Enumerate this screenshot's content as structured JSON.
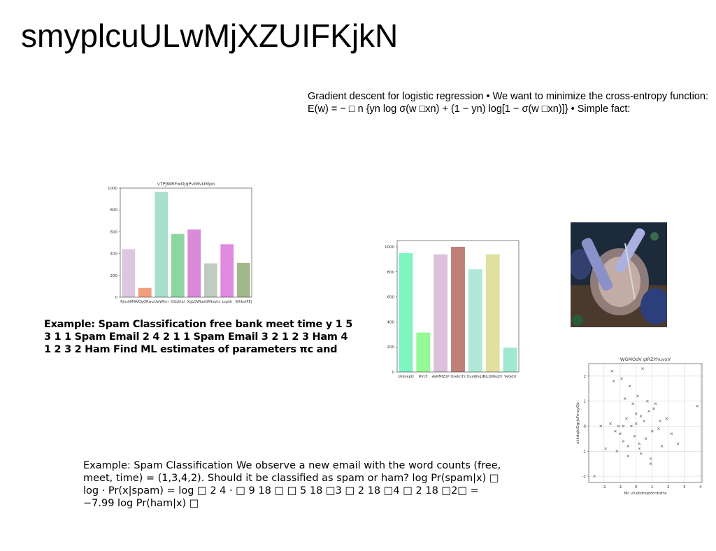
{
  "title": "smyplcuULwMjXZUIFKjkN",
  "text_blocks": [
    "Gradient descent for logistic regression • We want to minimize the cross-entropy function: E(w) = − □ n {yn log σ(w □xn) + (1 − yn) log[1 − σ(w □xn)]} • Simple fact:",
    "Example: Spam Classification free bank meet time y 1 5 3 1 1 Spam Email 2 4 2 1 1 Spam Email 3 2 1 2 3 Ham 4 1 2 3 2 Ham Find ML estimates of parameters πc and",
    "Example: Spam Classification We observe a new email with the word counts (free, meet, time) = (1,3,4,2). Should it be classified as spam or ham? log Pr(spam|x) □ log · Pr(x|spam) = log □ 2 4 · □ 9 18 □ □ 5 18 □3 □ 2 18 □4 □ 2 18 □2□ = −7.99 log Pr(ham|x) □"
  ],
  "charts": [
    {
      "type": "bar",
      "title": "vTPJWRFwOjqPviMvUMpo",
      "categories": [
        "RjnzhMW",
        "VQgORwu",
        "UwWhm",
        "QILUrIal",
        "XgLQWt",
        "ueGMtsuhx",
        "Lzpnk",
        "WhkvtPEj"
      ],
      "values": [
        440,
        85,
        965,
        580,
        620,
        310,
        485,
        315
      ],
      "colors": [
        "#dcc6e0",
        "#f0a07f",
        "#a8e0cc",
        "#8ed6a0",
        "#d98ad9",
        "#c0ccc0",
        "#e08ae0",
        "#a3b88a"
      ],
      "ylim": [
        0,
        1000
      ],
      "yticks": [
        0,
        200,
        400,
        600,
        800,
        1000
      ]
    },
    {
      "type": "bar",
      "categories": [
        "UkkoepQ",
        "RVcfi",
        "AyRMfZzP",
        "OseknTz",
        "OyaWygU",
        "NjLQWegYr",
        "VeGdU"
      ],
      "values": [
        950,
        315,
        940,
        1000,
        820,
        940,
        195
      ],
      "colors": [
        "#7ff5c0",
        "#95f995",
        "#dcc0dc",
        "#c08078",
        "#b0e8d8",
        "#e0e0a0",
        "#a0e8d0"
      ],
      "ylim": [
        0,
        1050
      ],
      "yticks": [
        0,
        200,
        400,
        600,
        800,
        1000
      ]
    },
    {
      "type": "scatter",
      "title": "WGMOdV gIRZYhuvxV",
      "x_label": "Mc vXxbdrepMcnbsHa",
      "y_label": "oLkdqtdOgrjsFrnoyQb",
      "x": [
        -2.6,
        -2.2,
        -1.9,
        -1.6,
        -1.5,
        -1.4,
        -1.2,
        -1.1,
        -1.0,
        -0.9,
        -0.8,
        -0.7,
        -0.6,
        -0.5,
        -0.4,
        -0.3,
        -0.2,
        -0.1,
        0.0,
        0.1,
        0.2,
        0.3,
        0.4,
        0.5,
        0.6,
        0.7,
        0.8,
        0.9,
        1.0,
        1.1,
        1.2,
        1.4,
        1.6,
        1.9,
        2.2,
        2.6,
        3.8,
        -0.5,
        0.3,
        0.0,
        -1.3,
        0.9,
        1.5,
        -0.8,
        0.2
      ],
      "y": [
        -2.0,
        0.0,
        -0.9,
        0.1,
        2.2,
        1.8,
        -1.0,
        0.0,
        -0.3,
        1.9,
        -0.6,
        1.1,
        0.3,
        -1.2,
        1.6,
        0.0,
        0.9,
        -0.4,
        0.1,
        1.2,
        -0.7,
        0.4,
        2.3,
        0.2,
        -0.5,
        1.0,
        0.6,
        -1.3,
        -0.2,
        0.7,
        0.9,
        -0.1,
        -0.8,
        0.3,
        -0.3,
        -0.7,
        0.8,
        -0.8,
        -1.1,
        0.5,
        -0.2,
        -1.5,
        0.2,
        0.0,
        -0.9
      ],
      "xlim": [
        -2.95,
        4.1
      ],
      "ylim": [
        -2.25,
        2.5
      ],
      "xticks": [
        -2,
        -1,
        0,
        1,
        2,
        3,
        4
      ],
      "yticks": [
        -2,
        -1,
        0,
        1,
        2
      ],
      "grid": true,
      "color": "#555555"
    }
  ]
}
